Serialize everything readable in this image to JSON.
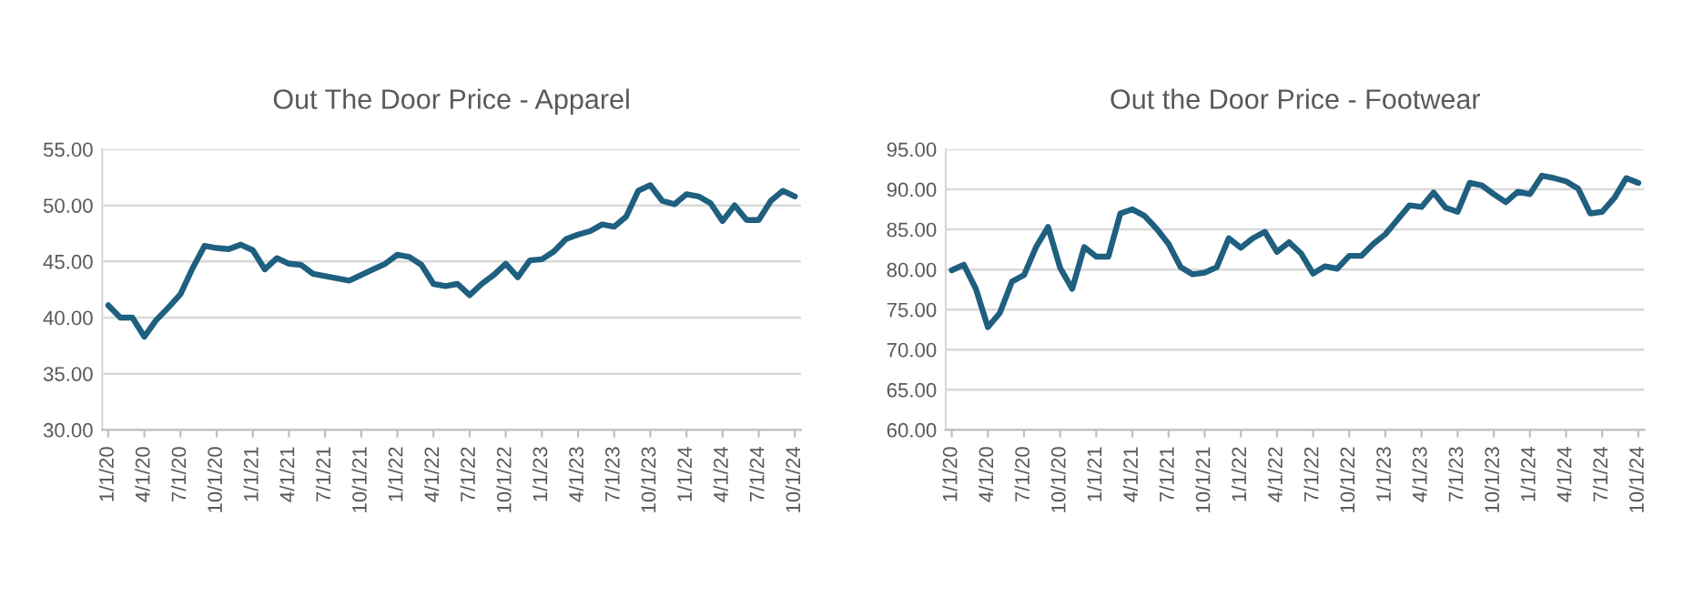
{
  "chart_data": [
    {
      "type": "line",
      "title": "Out The Door Price - Apparel",
      "categories": [
        "1/1/20",
        null,
        null,
        "4/1/20",
        null,
        null,
        "7/1/20",
        null,
        null,
        "10/1/20",
        null,
        null,
        "1/1/21",
        null,
        null,
        "4/1/21",
        null,
        null,
        "7/1/21",
        null,
        null,
        "10/1/21",
        null,
        null,
        "1/1/22",
        null,
        null,
        "4/1/22",
        null,
        null,
        "7/1/22",
        null,
        null,
        "10/1/22",
        null,
        null,
        "1/1/23",
        null,
        null,
        "4/1/23",
        null,
        null,
        "7/1/23",
        null,
        null,
        "10/1/23",
        null,
        null,
        "1/1/24",
        null,
        null,
        "4/1/24",
        null,
        null,
        "7/1/24",
        null,
        null,
        "10/1/24"
      ],
      "series": [
        {
          "color": "#1f5f7f",
          "values": [
            41.1,
            40.0,
            40.0,
            38.3,
            39.8,
            40.9,
            42.1,
            44.4,
            46.4,
            46.2,
            46.1,
            46.5,
            46.0,
            44.3,
            45.3,
            44.8,
            44.7,
            43.9,
            43.7,
            43.5,
            43.3,
            43.8,
            44.3,
            44.8,
            45.6,
            45.4,
            44.7,
            43.0,
            42.8,
            43.0,
            42.0,
            43.0,
            43.8,
            44.8,
            43.6,
            45.1,
            45.2,
            45.9,
            47.0,
            47.4,
            47.7,
            48.3,
            48.1,
            49.0,
            51.3,
            51.8,
            50.4,
            50.1,
            51.0,
            50.8,
            50.2,
            48.6,
            50.0,
            48.7,
            48.7,
            50.4,
            51.3,
            50.8
          ]
        }
      ],
      "ylim": [
        30,
        55
      ],
      "yticks": [
        {
          "value": 30,
          "label": "30.00"
        },
        {
          "value": 35,
          "label": "35.00"
        },
        {
          "value": 40,
          "label": "40.00"
        },
        {
          "value": 45,
          "label": "45.00"
        },
        {
          "value": 50,
          "label": "50.00"
        },
        {
          "value": 55,
          "label": "55.00"
        }
      ],
      "grid": "y",
      "marker": "none",
      "line_style": "solid"
    },
    {
      "type": "line",
      "title": "Out the Door Price - Footwear",
      "categories": [
        "1/1/20",
        null,
        null,
        "4/1/20",
        null,
        null,
        "7/1/20",
        null,
        null,
        "10/1/20",
        null,
        null,
        "1/1/21",
        null,
        null,
        "4/1/21",
        null,
        null,
        "7/1/21",
        null,
        null,
        "10/1/21",
        null,
        null,
        "1/1/22",
        null,
        null,
        "4/1/22",
        null,
        null,
        "7/1/22",
        null,
        null,
        "10/1/22",
        null,
        null,
        "1/1/23",
        null,
        null,
        "4/1/23",
        null,
        null,
        "7/1/23",
        null,
        null,
        "10/1/23",
        null,
        null,
        "1/1/24",
        null,
        null,
        "4/1/24",
        null,
        null,
        "7/1/24",
        null,
        null,
        "10/1/24"
      ],
      "series": [
        {
          "color": "#1f5f7f",
          "values": [
            79.9,
            80.6,
            77.6,
            72.8,
            74.6,
            78.5,
            79.3,
            82.8,
            85.3,
            80.2,
            77.6,
            82.8,
            81.6,
            81.6,
            87.0,
            87.5,
            86.7,
            85.1,
            83.2,
            80.3,
            79.4,
            79.6,
            80.3,
            83.9,
            82.7,
            83.9,
            84.7,
            82.2,
            83.4,
            82.0,
            79.5,
            80.4,
            80.1,
            81.7,
            81.7,
            83.2,
            84.4,
            86.2,
            88.0,
            87.8,
            89.6,
            87.7,
            87.2,
            90.8,
            90.5,
            89.4,
            88.4,
            89.7,
            89.4,
            91.7,
            91.4,
            91.0,
            90.1,
            87.0,
            87.2,
            88.9,
            91.4,
            90.8
          ]
        }
      ],
      "ylim": [
        60,
        95
      ],
      "yticks": [
        {
          "value": 60,
          "label": "60.00"
        },
        {
          "value": 65,
          "label": "65.00"
        },
        {
          "value": 70,
          "label": "70.00"
        },
        {
          "value": 75,
          "label": "75.00"
        },
        {
          "value": 80,
          "label": "80.00"
        },
        {
          "value": 85,
          "label": "85.00"
        },
        {
          "value": 90,
          "label": "90.00"
        },
        {
          "value": 95,
          "label": "95.00"
        }
      ],
      "grid": "y",
      "marker": "none",
      "line_style": "solid"
    }
  ]
}
